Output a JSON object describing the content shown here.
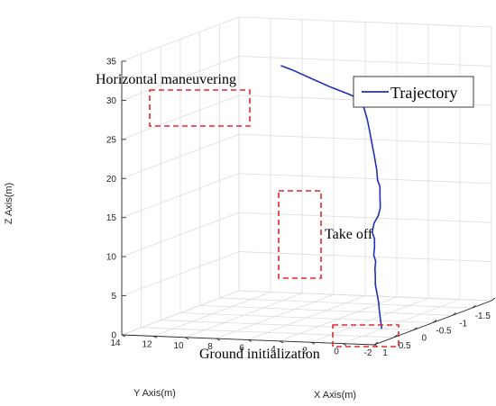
{
  "chart_data": {
    "type": "line",
    "projection": "3d",
    "title": "",
    "xlabel": "X Axis(m)",
    "ylabel": "Y Axis(m)",
    "zlabel": "Z Axis(m)",
    "xlim": [
      -2,
      1
    ],
    "ylim": [
      -2,
      14
    ],
    "zlim": [
      0,
      35
    ],
    "x_ticks": [
      "-2",
      "-1.5",
      "-1",
      "-0.5",
      "0",
      "0.5",
      "1"
    ],
    "y_ticks": [
      "-2",
      "0",
      "2",
      "4",
      "6",
      "8",
      "10",
      "12",
      "14"
    ],
    "z_ticks": [
      "0",
      "5",
      "10",
      "15",
      "20",
      "25",
      "30",
      "35"
    ],
    "grid": true,
    "legend_position": "top-right",
    "series": [
      {
        "name": "Trajectory",
        "color": "#1f2fbf",
        "points": [
          {
            "x": 0.0,
            "y": 0.0,
            "z": 0.0
          },
          {
            "x": -0.05,
            "y": 0.2,
            "z": 1.0
          },
          {
            "x": -0.12,
            "y": 0.45,
            "z": 2.0
          },
          {
            "x": -0.2,
            "y": 0.7,
            "z": 3.0
          },
          {
            "x": -0.26,
            "y": 0.95,
            "z": 4.0
          },
          {
            "x": -0.3,
            "y": 1.15,
            "z": 5.0
          },
          {
            "x": -0.34,
            "y": 1.25,
            "z": 6.0
          },
          {
            "x": -0.33,
            "y": 1.25,
            "z": 7.0
          },
          {
            "x": -0.39,
            "y": 1.35,
            "z": 7.8
          },
          {
            "x": -0.34,
            "y": 1.35,
            "z": 8.7
          },
          {
            "x": -0.4,
            "y": 1.45,
            "z": 9.5
          },
          {
            "x": -0.42,
            "y": 1.5,
            "z": 10.6
          },
          {
            "x": -0.38,
            "y": 1.55,
            "z": 11.5
          },
          {
            "x": -0.47,
            "y": 1.65,
            "z": 12.5
          },
          {
            "x": -0.62,
            "y": 1.75,
            "z": 13.2
          },
          {
            "x": -0.73,
            "y": 1.9,
            "z": 14.0
          },
          {
            "x": -0.76,
            "y": 2.0,
            "z": 15.5
          },
          {
            "x": -0.78,
            "y": 2.05,
            "z": 16.6
          },
          {
            "x": -0.74,
            "y": 2.1,
            "z": 17.5
          },
          {
            "x": -0.8,
            "y": 2.3,
            "z": 18.6
          },
          {
            "x": -0.9,
            "y": 2.7,
            "z": 20.2
          },
          {
            "x": -1.0,
            "y": 3.1,
            "z": 21.6
          },
          {
            "x": -1.1,
            "y": 3.5,
            "z": 23.0
          },
          {
            "x": -1.2,
            "y": 3.9,
            "z": 24.3
          },
          {
            "x": -1.28,
            "y": 4.3,
            "z": 25.5
          },
          {
            "x": -1.33,
            "y": 4.6,
            "z": 26.4
          },
          {
            "x": -1.4,
            "y": 5.5,
            "z": 26.9
          },
          {
            "x": -1.52,
            "y": 7.0,
            "z": 27.5
          },
          {
            "x": -1.65,
            "y": 8.5,
            "z": 28.2
          },
          {
            "x": -1.78,
            "y": 10.0,
            "z": 28.9
          },
          {
            "x": -1.86,
            "y": 11.0,
            "z": 29.3
          }
        ]
      }
    ],
    "annotations": [
      {
        "text": "Horizontal maneuvering"
      },
      {
        "text": "Take off"
      },
      {
        "text": "Ground initialization"
      }
    ]
  }
}
